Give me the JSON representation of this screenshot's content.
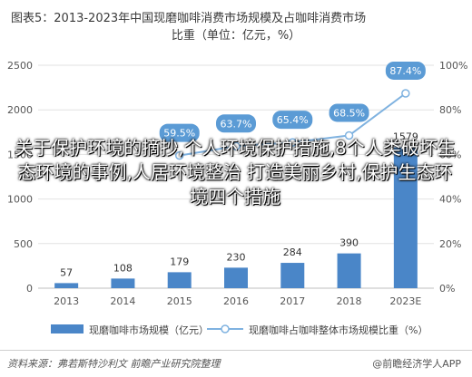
{
  "title": {
    "line1": "图表5：2013-2023年中国现磨咖啡消费市场规模及占咖啡消费市场",
    "line2": "比重（单位：亿元，%）"
  },
  "chart_data": {
    "type": "bar",
    "categories": [
      "2013",
      "2014",
      "2015",
      "2016",
      "2017",
      "2018",
      "2023E"
    ],
    "series": [
      {
        "name": "现磨咖啡市场规模（亿元）",
        "type": "bar",
        "values": [
          57,
          108,
          179,
          230,
          284,
          390,
          1579
        ],
        "axis": "left"
      },
      {
        "name": "现磨咖啡占咖啡整体市场规模比重（%）",
        "type": "line",
        "values": [
          null,
          null,
          59.5,
          63.7,
          65.4,
          68.5,
          87.4
        ],
        "axis": "right"
      }
    ],
    "bar_labels": [
      "57",
      "108",
      "179",
      "230",
      "284",
      "390",
      "1579"
    ],
    "line_labels": [
      "59.5%",
      "63.7%",
      "65.4%",
      "68.5%",
      "87.4%"
    ],
    "y_left": {
      "ylim": [
        0,
        2500
      ],
      "ticks": [
        "0",
        "500",
        "1000",
        "1500",
        "2000",
        "2500"
      ]
    },
    "y_right": {
      "ylim": [
        0,
        100
      ],
      "ticks": [
        "0%",
        "20%",
        "40%",
        "60%",
        "80%",
        "100%"
      ]
    },
    "colors": {
      "bar": "#4a86c8",
      "line": "#7fb2e0",
      "label_bg": "#5b9bd5",
      "grid": "#e2e2e2"
    },
    "legend_position": "bottom"
  },
  "overlay_text": "关于保护环境的摘抄,个人环境保护措施,8个人类破坏生态环境的事例,人居环境整治 打造美丽乡村,保护生态环境四个措施",
  "source": "资料来源：弗若斯特沙利文 前瞻产业研究院整理",
  "brand": "@前瞻经济学人APP"
}
